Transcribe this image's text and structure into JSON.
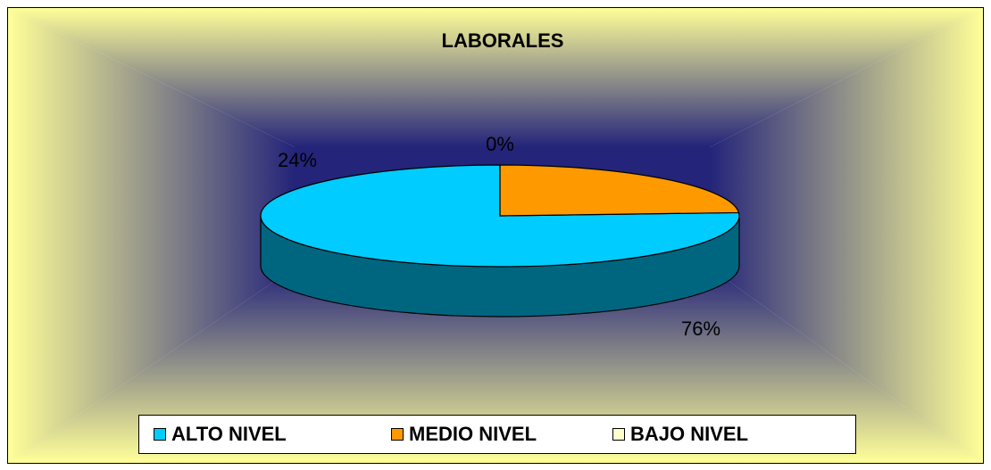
{
  "chart_data": {
    "type": "pie",
    "title": "LABORALES",
    "categories": [
      "ALTO NIVEL",
      "MEDIO NIVEL",
      "BAJO NIVEL"
    ],
    "values": [
      76,
      24,
      0
    ],
    "value_labels": [
      "76%",
      "24%",
      "0%"
    ],
    "colors": [
      "#00ccff",
      "#ff9900",
      "#ffffcc"
    ],
    "legend": "bottom"
  }
}
